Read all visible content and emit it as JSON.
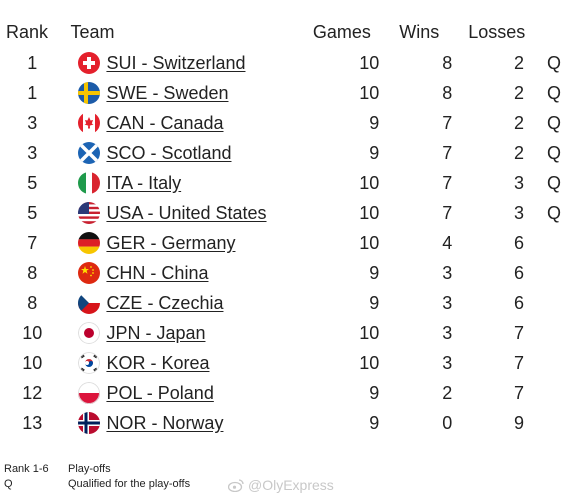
{
  "headers": {
    "rank": "Rank",
    "team": "Team",
    "games": "Games",
    "wins": "Wins",
    "losses": "Losses"
  },
  "rows": [
    {
      "rank": "1",
      "team": "SUI - Switzerland",
      "games": "10",
      "wins": "8",
      "losses": "2",
      "q": "Q",
      "flag": "switzerland-flag-icon"
    },
    {
      "rank": "1",
      "team": "SWE - Sweden",
      "games": "10",
      "wins": "8",
      "losses": "2",
      "q": "Q",
      "flag": "sweden-flag-icon"
    },
    {
      "rank": "3",
      "team": "CAN - Canada",
      "games": "9",
      "wins": "7",
      "losses": "2",
      "q": "Q",
      "flag": "canada-flag-icon"
    },
    {
      "rank": "3",
      "team": "SCO - Scotland",
      "games": "9",
      "wins": "7",
      "losses": "2",
      "q": "Q",
      "flag": "scotland-flag-icon"
    },
    {
      "rank": "5",
      "team": "ITA - Italy",
      "games": "10",
      "wins": "7",
      "losses": "3",
      "q": "Q",
      "flag": "italy-flag-icon"
    },
    {
      "rank": "5",
      "team": "USA - United States",
      "games": "10",
      "wins": "7",
      "losses": "3",
      "q": "Q",
      "flag": "usa-flag-icon"
    },
    {
      "rank": "7",
      "team": "GER - Germany",
      "games": "10",
      "wins": "4",
      "losses": "6",
      "q": "",
      "flag": "germany-flag-icon"
    },
    {
      "rank": "8",
      "team": "CHN - China",
      "games": "9",
      "wins": "3",
      "losses": "6",
      "q": "",
      "flag": "china-flag-icon"
    },
    {
      "rank": "8",
      "team": "CZE - Czechia",
      "games": "9",
      "wins": "3",
      "losses": "6",
      "q": "",
      "flag": "czechia-flag-icon"
    },
    {
      "rank": "10",
      "team": "JPN - Japan",
      "games": "10",
      "wins": "3",
      "losses": "7",
      "q": "",
      "flag": "japan-flag-icon"
    },
    {
      "rank": "10",
      "team": "KOR - Korea",
      "games": "10",
      "wins": "3",
      "losses": "7",
      "q": "",
      "flag": "korea-flag-icon"
    },
    {
      "rank": "12",
      "team": "POL - Poland",
      "games": "9",
      "wins": "2",
      "losses": "7",
      "q": "",
      "flag": "poland-flag-icon"
    },
    {
      "rank": "13",
      "team": "NOR - Norway",
      "games": "9",
      "wins": "0",
      "losses": "9",
      "q": "",
      "flag": "norway-flag-icon"
    }
  ],
  "legend": [
    {
      "key": "Rank 1-6",
      "desc": "Play-offs"
    },
    {
      "key": "Q",
      "desc": "Qualified for the play-offs"
    }
  ],
  "watermark": "@OlyExpress"
}
